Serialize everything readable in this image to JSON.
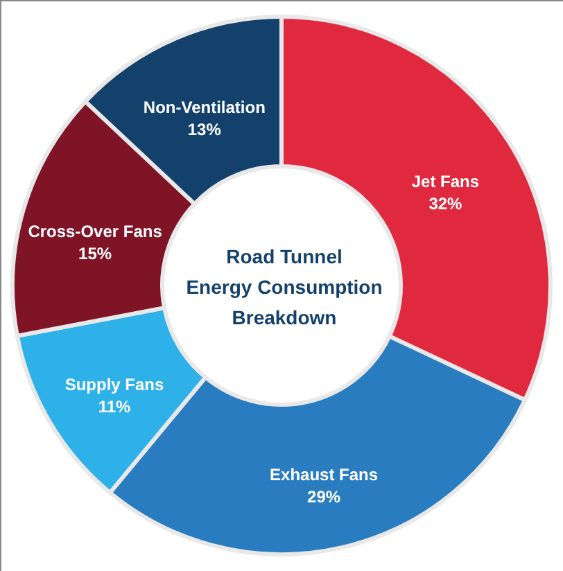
{
  "chart_data": {
    "type": "donut",
    "title": "Road Tunnel\nEnergy Consumption\nBreakdown",
    "categories": [
      "Jet Fans",
      "Exhaust Fans",
      "Supply Fans",
      "Cross-Over Fans",
      "Non-Ventilation"
    ],
    "values": [
      32,
      29,
      11,
      15,
      13
    ],
    "value_labels": [
      "32%",
      "29%",
      "11%",
      "15%",
      "13%"
    ],
    "colors": [
      "#e0283f",
      "#2a7cc1",
      "#2eb0e8",
      "#7e1426",
      "#14416b"
    ],
    "legend": false
  }
}
